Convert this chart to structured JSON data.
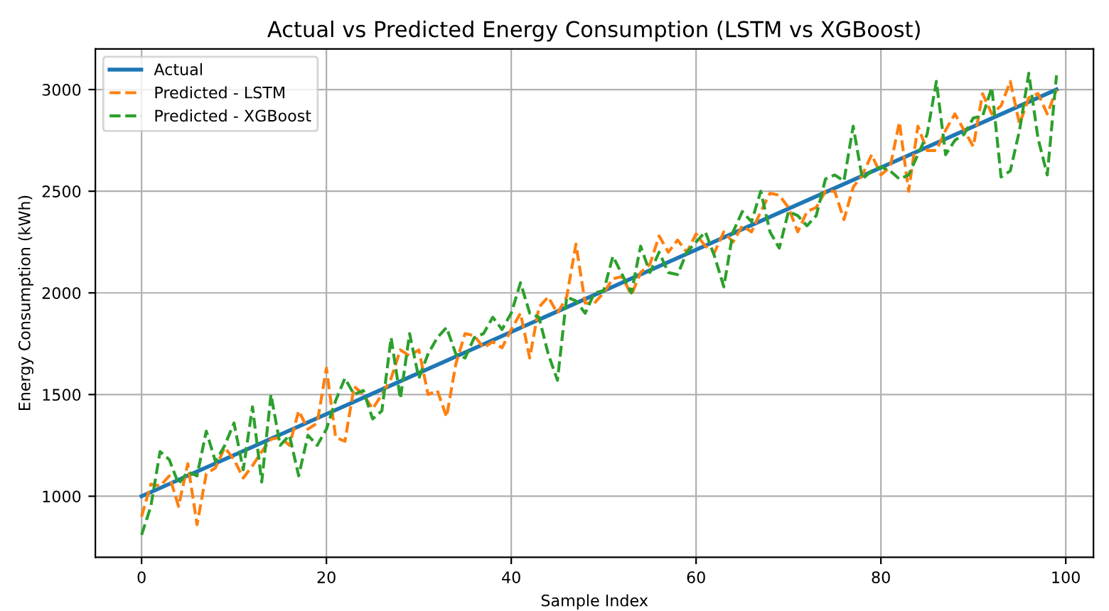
{
  "chart_data": {
    "type": "line",
    "title": "Actual vs Predicted Energy Consumption (LSTM vs XGBoost)",
    "xlabel": "Sample Index",
    "ylabel": "Energy Consumption (kWh)",
    "xlim": [
      -5,
      103
    ],
    "ylim": [
      700,
      3200
    ],
    "xticks": [
      0,
      20,
      40,
      60,
      80,
      100
    ],
    "yticks": [
      1000,
      1500,
      2000,
      2500,
      3000
    ],
    "grid": true,
    "legend": "top left",
    "x": [
      0,
      1,
      2,
      3,
      4,
      5,
      6,
      7,
      8,
      9,
      10,
      11,
      12,
      13,
      14,
      15,
      16,
      17,
      18,
      19,
      20,
      21,
      22,
      23,
      24,
      25,
      26,
      27,
      28,
      29,
      30,
      31,
      32,
      33,
      34,
      35,
      36,
      37,
      38,
      39,
      40,
      41,
      42,
      43,
      44,
      45,
      46,
      47,
      48,
      49,
      50,
      51,
      52,
      53,
      54,
      55,
      56,
      57,
      58,
      59,
      60,
      61,
      62,
      63,
      64,
      65,
      66,
      67,
      68,
      69,
      70,
      71,
      72,
      73,
      74,
      75,
      76,
      77,
      78,
      79,
      80,
      81,
      82,
      83,
      84,
      85,
      86,
      87,
      88,
      89,
      90,
      91,
      92,
      93,
      94,
      95,
      96,
      97,
      98,
      99
    ],
    "series": [
      {
        "name": "Actual",
        "color": "#1f77b4",
        "line_style": "solid",
        "x": [
          0,
          99
        ],
        "values": [
          1000,
          3000
        ]
      },
      {
        "name": "Predicted - LSTM",
        "color": "#ff7f0e",
        "line_style": "dashed",
        "values": [
          900,
          1060,
          1050,
          1100,
          950,
          1160,
          860,
          1110,
          1140,
          1240,
          1180,
          1090,
          1150,
          1220,
          1280,
          1290,
          1250,
          1420,
          1330,
          1360,
          1630,
          1290,
          1270,
          1540,
          1500,
          1430,
          1500,
          1580,
          1720,
          1690,
          1720,
          1500,
          1520,
          1390,
          1650,
          1800,
          1790,
          1730,
          1760,
          1730,
          1820,
          1900,
          1680,
          1930,
          1980,
          1900,
          1980,
          2240,
          1950,
          1950,
          2000,
          2070,
          2080,
          1990,
          2100,
          2140,
          2280,
          2200,
          2260,
          2200,
          2290,
          2230,
          2200,
          2300,
          2250,
          2330,
          2300,
          2400,
          2490,
          2480,
          2420,
          2300,
          2400,
          2420,
          2500,
          2500,
          2360,
          2520,
          2580,
          2680,
          2580,
          2620,
          2840,
          2500,
          2820,
          2700,
          2700,
          2800,
          2880,
          2800,
          2720,
          2980,
          2880,
          2920,
          3040,
          2830,
          2960,
          2980,
          2880,
          3000
        ]
      },
      {
        "name": "Predicted - XGBoost",
        "color": "#2ca02c",
        "line_style": "dashed",
        "values": [
          810,
          950,
          1220,
          1180,
          1060,
          1120,
          1100,
          1320,
          1170,
          1250,
          1360,
          1130,
          1440,
          1070,
          1500,
          1250,
          1300,
          1100,
          1300,
          1250,
          1330,
          1470,
          1580,
          1500,
          1520,
          1380,
          1420,
          1780,
          1480,
          1800,
          1580,
          1700,
          1780,
          1830,
          1700,
          1680,
          1780,
          1800,
          1880,
          1820,
          1900,
          2050,
          1900,
          1880,
          1700,
          1570,
          1980,
          1960,
          1900,
          2000,
          2010,
          2180,
          2090,
          2000,
          2230,
          2100,
          2200,
          2100,
          2090,
          2200,
          2250,
          2300,
          2180,
          2030,
          2300,
          2400,
          2350,
          2500,
          2300,
          2220,
          2400,
          2380,
          2330,
          2380,
          2560,
          2580,
          2550,
          2820,
          2560,
          2600,
          2620,
          2600,
          2560,
          2580,
          2680,
          2780,
          3040,
          2680,
          2750,
          2780,
          2860,
          2870,
          3010,
          2570,
          2600,
          2800,
          3080,
          2760,
          2580,
          3070
        ]
      }
    ]
  }
}
